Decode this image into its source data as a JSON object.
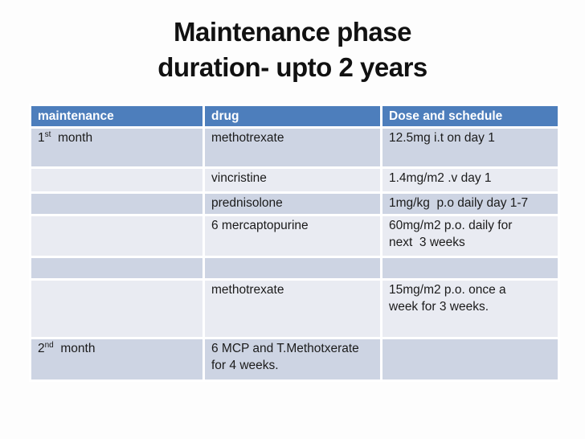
{
  "slide": {
    "title_line1": "Maintenance phase",
    "title_line2": "duration- upto 2 years"
  },
  "colors": {
    "header_bg": "#4D7EBC",
    "header_text": "#FFFFFF",
    "row_dark": "#CDD4E3",
    "row_light": "#E9EBF2",
    "grid_line": "#FFFFFF",
    "body_text": "#1B1B1B",
    "title_text": "#111111"
  },
  "table": {
    "columns": [
      "maintenance",
      "drug",
      "Dose and schedule"
    ],
    "rows": [
      {
        "month_num": "1",
        "month_sup": "st",
        "month_rest": "  month",
        "drug": "methotrexate",
        "dose": "12.5mg i.t on day 1"
      },
      {
        "month_num": "",
        "month_sup": "",
        "month_rest": "",
        "drug": "vincristine",
        "dose": "1.4mg/m2 .v day 1"
      },
      {
        "month_num": "",
        "month_sup": "",
        "month_rest": "",
        "drug": "prednisolone",
        "dose": "1mg/kg  p.o daily day 1-7"
      },
      {
        "month_num": "",
        "month_sup": "",
        "month_rest": "",
        "drug": "6 mercaptopurine",
        "dose": "60mg/m2 p.o. daily for\nnext  3 weeks"
      },
      {
        "month_num": "",
        "month_sup": "",
        "month_rest": "",
        "drug": "",
        "dose": ""
      },
      {
        "month_num": "",
        "month_sup": "",
        "month_rest": "",
        "drug": "methotrexate",
        "dose": "15mg/m2 p.o. once a\nweek for 3 weeks."
      },
      {
        "month_num": "2",
        "month_sup": "nd",
        "month_rest": "  month",
        "drug": "6 MCP and T.Methotxerate\nfor 4 weeks.",
        "dose": ""
      }
    ]
  }
}
